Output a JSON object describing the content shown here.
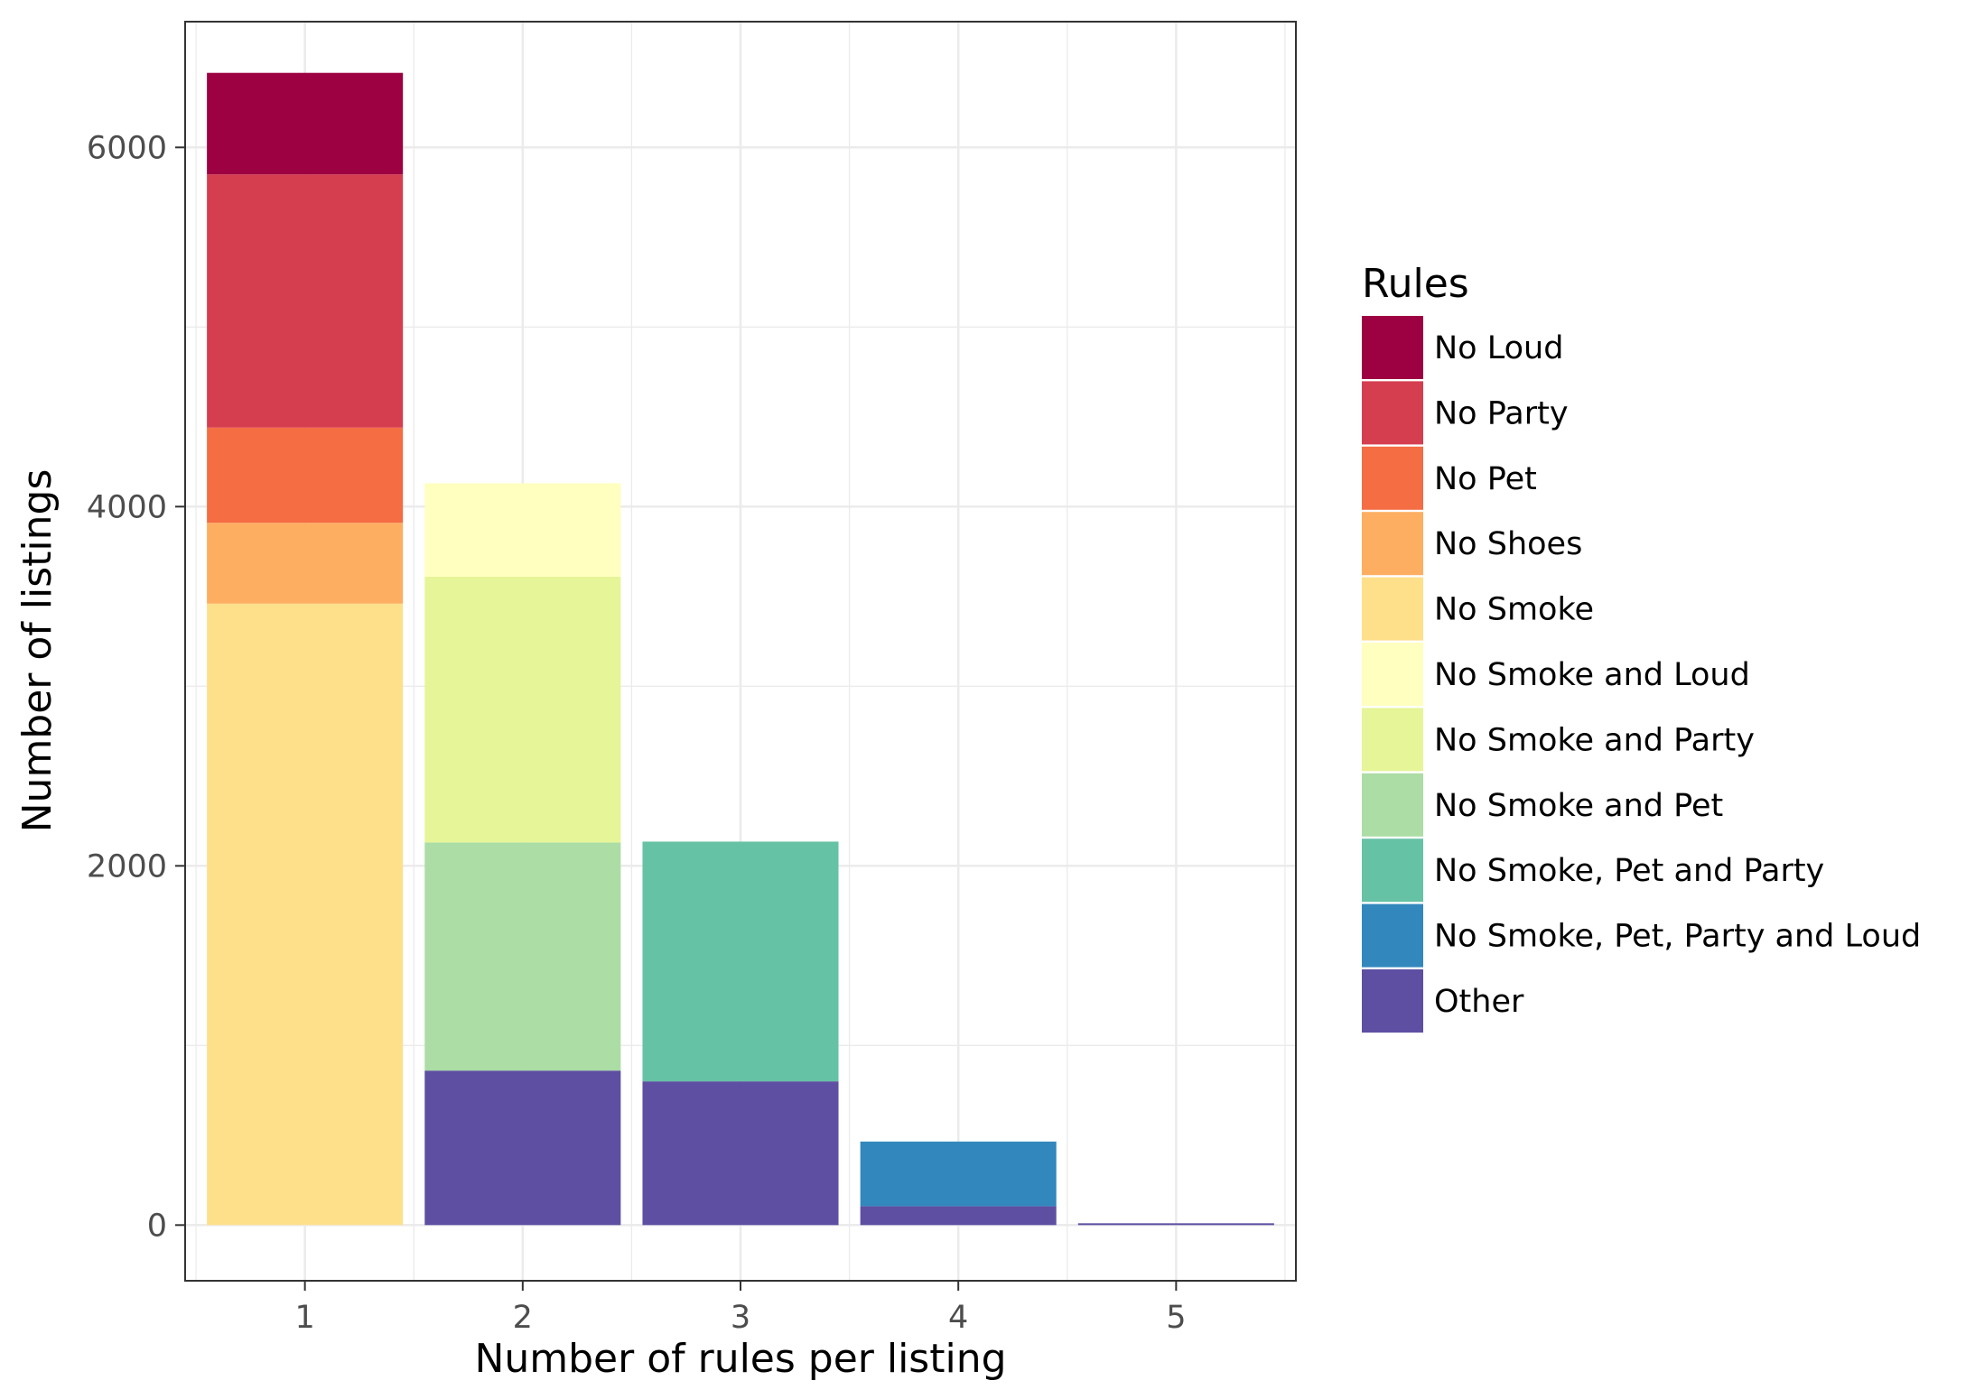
{
  "chart_data": {
    "type": "bar",
    "stacked": true,
    "title": "",
    "xlabel": "Number of rules per listing",
    "ylabel": "Number of listings",
    "categories": [
      "1",
      "2",
      "3",
      "4",
      "5"
    ],
    "ylim": [
      -310,
      6700
    ],
    "y_ticks": [
      0,
      2000,
      4000,
      6000
    ],
    "y_tick_labels": [
      "0",
      "2000",
      "4000",
      "6000"
    ],
    "grid": true,
    "legend": {
      "title": "Rules",
      "position": "right"
    },
    "series": [
      {
        "name": "Other",
        "color": "#5E4FA2",
        "values": [
          0,
          860,
          800,
          105,
          10
        ]
      },
      {
        "name": "No Smoke, Pet, Party and Loud",
        "color": "#3288BD",
        "values": [
          0,
          0,
          0,
          360,
          0
        ]
      },
      {
        "name": "No Smoke, Pet and Party",
        "color": "#66C2A5",
        "values": [
          0,
          0,
          1335,
          0,
          0
        ]
      },
      {
        "name": "No Smoke and Pet",
        "color": "#ABDDA4",
        "values": [
          0,
          1270,
          0,
          0,
          0
        ]
      },
      {
        "name": "No Smoke and Party",
        "color": "#E6F598",
        "values": [
          0,
          1480,
          0,
          0,
          0
        ]
      },
      {
        "name": "No Smoke and Loud",
        "color": "#FFFFBF",
        "values": [
          0,
          520,
          0,
          0,
          0
        ]
      },
      {
        "name": "No Smoke",
        "color": "#FEE08B",
        "values": [
          3460,
          0,
          0,
          0,
          0
        ]
      },
      {
        "name": "No Shoes",
        "color": "#FDAE61",
        "values": [
          450,
          0,
          0,
          0,
          0
        ]
      },
      {
        "name": "No Pet",
        "color": "#F46D43",
        "values": [
          530,
          0,
          0,
          0,
          0
        ]
      },
      {
        "name": "No Party",
        "color": "#D53E4F",
        "values": [
          1410,
          0,
          0,
          0,
          0
        ]
      },
      {
        "name": "No Loud",
        "color": "#9E0142",
        "values": [
          565,
          0,
          0,
          0,
          0
        ]
      }
    ],
    "legend_order": [
      "No Loud",
      "No Party",
      "No Pet",
      "No Shoes",
      "No Smoke",
      "No Smoke and Loud",
      "No Smoke and Party",
      "No Smoke and Pet",
      "No Smoke, Pet and Party",
      "No Smoke, Pet, Party and Loud",
      "Other"
    ]
  }
}
